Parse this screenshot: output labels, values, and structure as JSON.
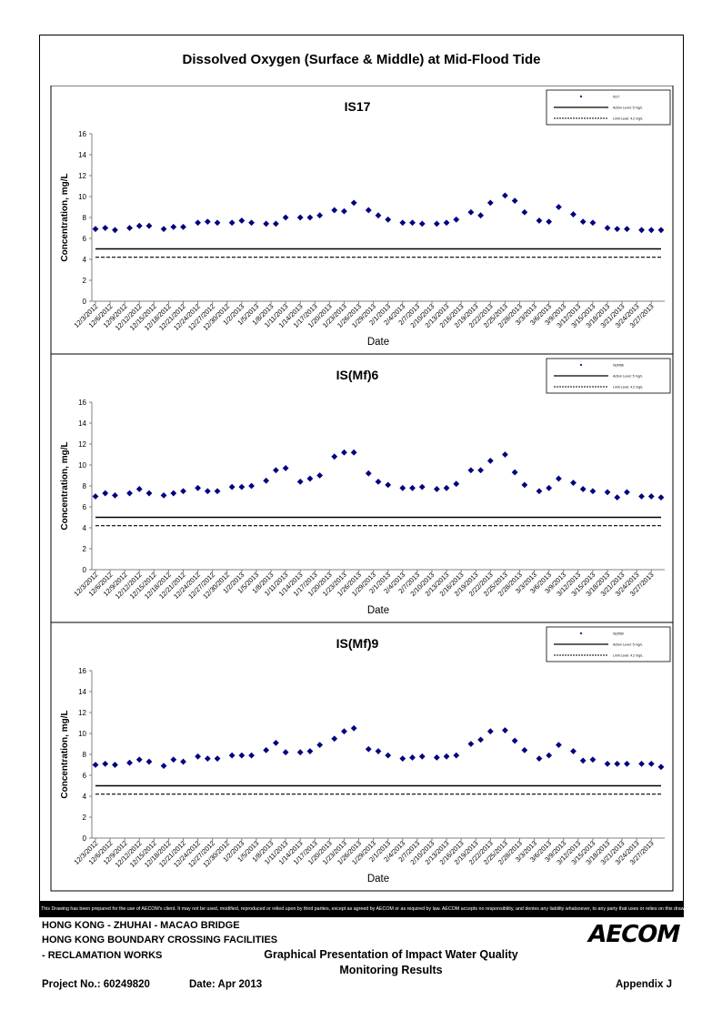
{
  "page_title": "Dissolved Oxygen (Surface & Middle) at Mid-Flood Tide",
  "chart_data": [
    {
      "type": "scatter",
      "title": "IS17",
      "xlabel": "Date",
      "ylabel": "Concentration, mg/L",
      "ylim": [
        0,
        16
      ],
      "y_ticks": [
        0,
        2,
        4,
        6,
        8,
        10,
        12,
        14,
        16
      ],
      "x_tick_labels": [
        "12/3/2012",
        "12/6/2012",
        "12/9/2012",
        "12/12/2012",
        "12/15/2012",
        "12/18/2012",
        "12/21/2012",
        "12/24/2012",
        "12/27/2012",
        "12/30/2012",
        "1/2/2013",
        "1/5/2013",
        "1/8/2013",
        "1/11/2013",
        "1/14/2013",
        "1/17/2013",
        "1/20/2013",
        "1/23/2013",
        "1/26/2013",
        "1/29/2013",
        "2/1/2013",
        "2/4/2013",
        "2/7/2013",
        "2/10/2013",
        "2/13/2013",
        "2/16/2013",
        "2/19/2013",
        "2/22/2013",
        "2/25/2013",
        "2/28/2013",
        "3/3/2013",
        "3/6/2013",
        "3/9/2013",
        "3/12/2013",
        "3/15/2013",
        "3/18/2013",
        "3/21/2013",
        "3/24/2013",
        "3/27/2013"
      ],
      "x_range": [
        "12/3/2012",
        "3/29/2013"
      ],
      "legend_position": "top-right",
      "legend": [
        "IS17",
        "Action Level: 5 mg/L",
        "Limit Level: 4.2 mg/L"
      ],
      "series": [
        {
          "name": "IS17",
          "color": "#000080",
          "marker": "diamond",
          "x": [
            "12/3/2012",
            "12/5/2012",
            "12/7/2012",
            "12/10/2012",
            "12/12/2012",
            "12/14/2012",
            "12/17/2012",
            "12/19/2012",
            "12/21/2012",
            "12/24/2012",
            "12/26/2012",
            "12/28/2012",
            "12/31/2012",
            "1/2/2013",
            "1/4/2013",
            "1/7/2013",
            "1/9/2013",
            "1/11/2013",
            "1/14/2013",
            "1/16/2013",
            "1/18/2013",
            "1/21/2013",
            "1/23/2013",
            "1/25/2013",
            "1/28/2013",
            "1/30/2013",
            "2/1/2013",
            "2/4/2013",
            "2/6/2013",
            "2/8/2013",
            "2/11/2013",
            "2/13/2013",
            "2/15/2013",
            "2/18/2013",
            "2/20/2013",
            "2/22/2013",
            "2/25/2013",
            "2/27/2013",
            "3/1/2013",
            "3/4/2013",
            "3/6/2013",
            "3/8/2013",
            "3/11/2013",
            "3/13/2013",
            "3/15/2013",
            "3/18/2013",
            "3/20/2013",
            "3/22/2013",
            "3/25/2013",
            "3/27/2013",
            "3/29/2013"
          ],
          "y": [
            6.9,
            7.0,
            6.8,
            7.0,
            7.2,
            7.2,
            6.9,
            7.1,
            7.1,
            7.5,
            7.6,
            7.5,
            7.5,
            7.7,
            7.5,
            7.4,
            7.4,
            8.0,
            8.0,
            8.0,
            8.2,
            8.7,
            8.6,
            9.4,
            8.7,
            8.2,
            7.8,
            7.5,
            7.5,
            7.4,
            7.4,
            7.5,
            7.8,
            8.5,
            8.2,
            9.4,
            10.1,
            9.6,
            8.5,
            7.7,
            7.6,
            9.0,
            8.3,
            7.6,
            7.5,
            7.0,
            6.9,
            6.9,
            6.8,
            6.8,
            6.8
          ]
        },
        {
          "name": "Action Level: 5 mg/L",
          "style": "solid",
          "value": 5
        },
        {
          "name": "Limit Level: 4.2 mg/L",
          "style": "dashed",
          "value": 4.2
        }
      ]
    },
    {
      "type": "scatter",
      "title": "IS(Mf)6",
      "xlabel": "Date",
      "ylabel": "Concentration, mg/L",
      "ylim": [
        0,
        16
      ],
      "y_ticks": [
        0,
        2,
        4,
        6,
        8,
        10,
        12,
        14,
        16
      ],
      "x_tick_labels": [
        "12/3/2012",
        "12/6/2012",
        "12/9/2012",
        "12/12/2012",
        "12/15/2012",
        "12/18/2012",
        "12/21/2012",
        "12/24/2012",
        "12/27/2012",
        "12/30/2012",
        "1/2/2013",
        "1/5/2013",
        "1/8/2013",
        "1/11/2013",
        "1/14/2013",
        "1/17/2013",
        "1/20/2013",
        "1/23/2013",
        "1/26/2013",
        "1/29/2013",
        "2/1/2013",
        "2/4/2013",
        "2/7/2013",
        "2/10/2013",
        "2/13/2013",
        "2/16/2013",
        "2/19/2013",
        "2/22/2013",
        "2/25/2013",
        "2/28/2013",
        "3/3/2013",
        "3/6/2013",
        "3/9/2013",
        "3/12/2013",
        "3/15/2013",
        "3/18/2013",
        "3/21/2013",
        "3/24/2013",
        "3/27/2013"
      ],
      "x_range": [
        "12/3/2012",
        "3/29/2013"
      ],
      "legend_position": "top-right",
      "legend": [
        "IS(Mf)6",
        "Action Level: 5 mg/L",
        "Limit Level: 4.2 mg/L"
      ],
      "series": [
        {
          "name": "IS(Mf)6",
          "color": "#000080",
          "marker": "diamond",
          "x": [
            "12/3/2012",
            "12/5/2012",
            "12/7/2012",
            "12/10/2012",
            "12/12/2012",
            "12/14/2012",
            "12/17/2012",
            "12/19/2012",
            "12/21/2012",
            "12/24/2012",
            "12/26/2012",
            "12/28/2012",
            "12/31/2012",
            "1/2/2013",
            "1/4/2013",
            "1/7/2013",
            "1/9/2013",
            "1/11/2013",
            "1/14/2013",
            "1/16/2013",
            "1/18/2013",
            "1/21/2013",
            "1/23/2013",
            "1/25/2013",
            "1/28/2013",
            "1/30/2013",
            "2/1/2013",
            "2/4/2013",
            "2/6/2013",
            "2/8/2013",
            "2/11/2013",
            "2/13/2013",
            "2/15/2013",
            "2/18/2013",
            "2/20/2013",
            "2/22/2013",
            "2/25/2013",
            "2/27/2013",
            "3/1/2013",
            "3/4/2013",
            "3/6/2013",
            "3/8/2013",
            "3/11/2013",
            "3/13/2013",
            "3/15/2013",
            "3/18/2013",
            "3/20/2013",
            "3/22/2013",
            "3/25/2013",
            "3/27/2013",
            "3/29/2013"
          ],
          "y": [
            7.0,
            7.3,
            7.1,
            7.3,
            7.7,
            7.3,
            7.1,
            7.3,
            7.5,
            7.8,
            7.5,
            7.5,
            7.9,
            7.9,
            8.0,
            8.5,
            9.5,
            9.7,
            8.4,
            8.7,
            9.0,
            10.8,
            11.2,
            11.2,
            9.2,
            8.4,
            8.1,
            7.8,
            7.8,
            7.9,
            7.7,
            7.8,
            8.2,
            9.5,
            9.5,
            10.4,
            11.0,
            9.3,
            8.1,
            7.5,
            7.8,
            8.7,
            8.3,
            7.7,
            7.5,
            7.4,
            6.9,
            7.4,
            7.0,
            7.0,
            6.9
          ]
        },
        {
          "name": "Action Level: 5 mg/L",
          "style": "solid",
          "value": 5
        },
        {
          "name": "Limit Level: 4.2 mg/L",
          "style": "dashed",
          "value": 4.2
        }
      ]
    },
    {
      "type": "scatter",
      "title": "IS(Mf)9",
      "xlabel": "Date",
      "ylabel": "Concentration, mg/L",
      "ylim": [
        0,
        16
      ],
      "y_ticks": [
        0,
        2,
        4,
        6,
        8,
        10,
        12,
        14,
        16
      ],
      "x_tick_labels": [
        "12/3/2012",
        "12/6/2012",
        "12/9/2012",
        "12/12/2012",
        "12/15/2012",
        "12/18/2012",
        "12/21/2012",
        "12/24/2012",
        "12/27/2012",
        "12/30/2012",
        "1/2/2013",
        "1/5/2013",
        "1/8/2013",
        "1/11/2013",
        "1/14/2013",
        "1/17/2013",
        "1/20/2013",
        "1/23/2013",
        "1/26/2013",
        "1/29/2013",
        "2/1/2013",
        "2/4/2013",
        "2/7/2013",
        "2/10/2013",
        "2/13/2013",
        "2/16/2013",
        "2/19/2013",
        "2/22/2013",
        "2/25/2013",
        "2/28/2013",
        "3/3/2013",
        "3/6/2013",
        "3/9/2013",
        "3/12/2013",
        "3/15/2013",
        "3/18/2013",
        "3/21/2013",
        "3/24/2013",
        "3/27/2013"
      ],
      "x_range": [
        "12/3/2012",
        "3/29/2013"
      ],
      "legend_position": "top-right",
      "legend": [
        "IS(Mf)9",
        "Action Level: 5 mg/L",
        "Limit Level: 4.2 mg/L"
      ],
      "series": [
        {
          "name": "IS(Mf)9",
          "color": "#000080",
          "marker": "diamond",
          "x": [
            "12/3/2012",
            "12/5/2012",
            "12/7/2012",
            "12/10/2012",
            "12/12/2012",
            "12/14/2012",
            "12/17/2012",
            "12/19/2012",
            "12/21/2012",
            "12/24/2012",
            "12/26/2012",
            "12/28/2012",
            "12/31/2012",
            "1/2/2013",
            "1/4/2013",
            "1/7/2013",
            "1/9/2013",
            "1/11/2013",
            "1/14/2013",
            "1/16/2013",
            "1/18/2013",
            "1/21/2013",
            "1/23/2013",
            "1/25/2013",
            "1/28/2013",
            "1/30/2013",
            "2/1/2013",
            "2/4/2013",
            "2/6/2013",
            "2/8/2013",
            "2/11/2013",
            "2/13/2013",
            "2/15/2013",
            "2/18/2013",
            "2/20/2013",
            "2/22/2013",
            "2/25/2013",
            "2/27/2013",
            "3/1/2013",
            "3/4/2013",
            "3/6/2013",
            "3/8/2013",
            "3/11/2013",
            "3/13/2013",
            "3/15/2013",
            "3/18/2013",
            "3/20/2013",
            "3/22/2013",
            "3/25/2013",
            "3/27/2013",
            "3/29/2013"
          ],
          "y": [
            7.0,
            7.1,
            7.0,
            7.2,
            7.5,
            7.3,
            6.9,
            7.5,
            7.3,
            7.8,
            7.6,
            7.6,
            7.9,
            7.9,
            7.9,
            8.4,
            9.1,
            8.2,
            8.2,
            8.3,
            8.9,
            9.5,
            10.2,
            10.5,
            8.5,
            8.3,
            7.9,
            7.6,
            7.7,
            7.8,
            7.7,
            7.8,
            7.9,
            9.0,
            9.4,
            10.2,
            10.3,
            9.3,
            8.4,
            7.6,
            7.9,
            8.9,
            8.3,
            7.4,
            7.5,
            7.1,
            7.1,
            7.1,
            7.1,
            7.1,
            6.8
          ]
        },
        {
          "name": "Action Level: 5 mg/L",
          "style": "solid",
          "value": 5
        },
        {
          "name": "Limit Level: 4.2 mg/L",
          "style": "dashed",
          "value": 4.2
        }
      ]
    }
  ],
  "disclaimer": "This Drawing has been prepared for the use of AECOM's client. It may not be used, modified, reproduced or relied upon by third parties, except as agreed by AECOM or as required by law. AECOM accepts no responsibility, and denies any liability whatsoever, to any party that uses or relies on this drawing without AECOM's express written consent.",
  "footer": {
    "project_line1": "HONG KONG - ZHUHAI - MACAO BRIDGE",
    "project_line2": "HONG KONG BOUNDARY CROSSING FACILITIES",
    "project_line3": "- RECLAMATION WORKS",
    "report_title_line1": "Graphical Presentation of Impact Water Quality",
    "report_title_line2": "Monitoring Results",
    "project_no": "Project No.: 60249820",
    "date": "Date: Apr 2013",
    "appendix": "Appendix J",
    "logo": "AECOM"
  }
}
